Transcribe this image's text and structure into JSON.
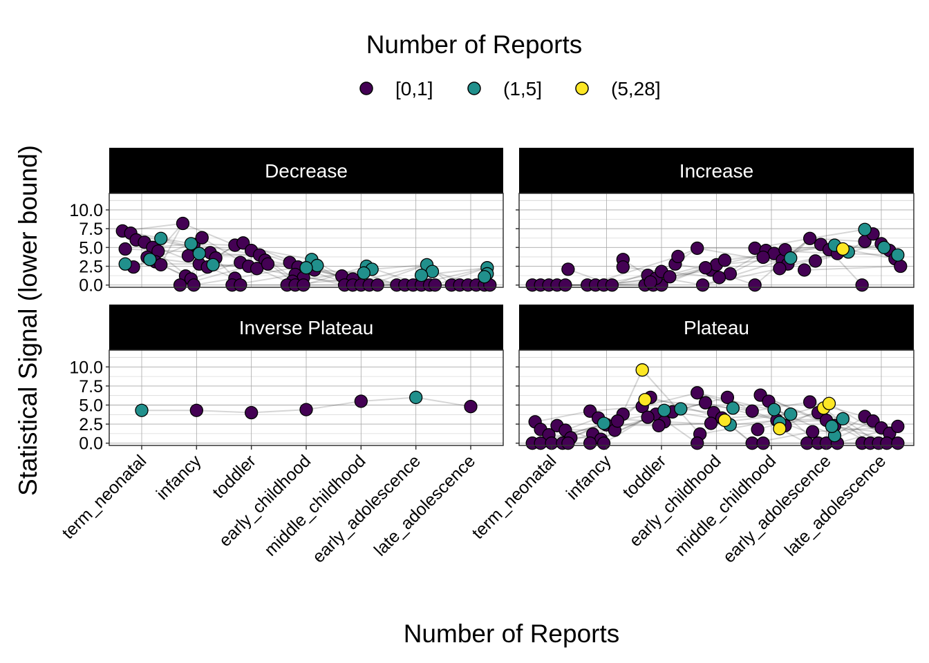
{
  "chart_data": {
    "type": "scatter",
    "xlabel": "Number of Reports",
    "ylabel": "Statistical Signal (lower bound)",
    "ylim": [
      -0.3,
      12.2
    ],
    "y_ticks": [
      "0.0",
      "2.5",
      "5.0",
      "7.5",
      "10.0"
    ],
    "categories": [
      "term_neonatal",
      "infancy",
      "toddler",
      "early_childhood",
      "middle_childhood",
      "early_adolescence",
      "late_adolescence"
    ],
    "grid": true,
    "facet_layout": "2x2",
    "legend": {
      "title": "Number of Reports",
      "position": "top",
      "entries": [
        {
          "label": "[0,1]",
          "color": "#440154"
        },
        {
          "label": "(1,5]",
          "color": "#21908C"
        },
        {
          "label": "(5,28]",
          "color": "#FDE725"
        }
      ]
    },
    "panels": [
      {
        "label": "Decrease",
        "series": [
          {
            "name": "[0,1]",
            "values": [
              [
                -0.35,
                7.2
              ],
              [
                -0.2,
                6.9
              ],
              [
                -0.1,
                6.0
              ],
              [
                0.05,
                5.7
              ],
              [
                0.2,
                5.0
              ],
              [
                0.3,
                4.5
              ],
              [
                -0.3,
                4.8
              ],
              [
                0.1,
                3.7
              ],
              [
                0.25,
                3.1
              ],
              [
                -0.15,
                2.4
              ],
              [
                0.35,
                2.7
              ],
              [
                0.75,
                8.2
              ],
              [
                0.95,
                5.4
              ],
              [
                1.1,
                6.3
              ],
              [
                1.25,
                4.3
              ],
              [
                1.35,
                3.6
              ],
              [
                0.85,
                3.9
              ],
              [
                1.05,
                2.8
              ],
              [
                1.2,
                2.4
              ],
              [
                0.8,
                1.2
              ],
              [
                0.9,
                0.8
              ],
              [
                0.7,
                0.0
              ],
              [
                0.95,
                0.0
              ],
              [
                1.7,
                5.3
              ],
              [
                1.85,
                5.6
              ],
              [
                2.0,
                4.6
              ],
              [
                2.15,
                4.0
              ],
              [
                2.25,
                3.3
              ],
              [
                1.8,
                3.0
              ],
              [
                1.95,
                2.5
              ],
              [
                2.1,
                2.2
              ],
              [
                2.3,
                2.8
              ],
              [
                1.7,
                0.9
              ],
              [
                1.65,
                0.0
              ],
              [
                1.8,
                0.0
              ],
              [
                2.7,
                3.0
              ],
              [
                2.85,
                2.4
              ],
              [
                3.0,
                2.2
              ],
              [
                3.15,
                2.0
              ],
              [
                2.8,
                1.4
              ],
              [
                2.95,
                1.0
              ],
              [
                2.75,
                0.5
              ],
              [
                2.65,
                0.0
              ],
              [
                2.8,
                0.0
              ],
              [
                2.95,
                0.0
              ],
              [
                3.65,
                1.2
              ],
              [
                3.85,
                0.8
              ],
              [
                3.7,
                0.0
              ],
              [
                3.85,
                0.0
              ],
              [
                4.0,
                0.0
              ],
              [
                4.15,
                0.0
              ],
              [
                4.3,
                0.0
              ],
              [
                4.65,
                0.0
              ],
              [
                4.8,
                0.0
              ],
              [
                4.95,
                0.0
              ],
              [
                5.1,
                0.0
              ],
              [
                5.25,
                0.0
              ],
              [
                5.35,
                0.0
              ],
              [
                5.65,
                0.0
              ],
              [
                5.8,
                0.0
              ],
              [
                5.95,
                0.0
              ],
              [
                6.1,
                0.0
              ],
              [
                6.25,
                0.0
              ],
              [
                6.35,
                0.0
              ]
            ]
          },
          {
            "name": "(1,5]",
            "values": [
              [
                0.35,
                6.2
              ],
              [
                -0.3,
                2.8
              ],
              [
                0.15,
                3.4
              ],
              [
                0.9,
                5.5
              ],
              [
                1.05,
                4.2
              ],
              [
                1.3,
                2.7
              ],
              [
                3.1,
                3.4
              ],
              [
                3.2,
                2.6
              ],
              [
                3.0,
                2.3
              ],
              [
                4.1,
                2.5
              ],
              [
                4.2,
                2.1
              ],
              [
                4.05,
                1.6
              ],
              [
                5.2,
                2.7
              ],
              [
                5.3,
                1.8
              ],
              [
                5.1,
                1.3
              ],
              [
                6.3,
                2.3
              ],
              [
                6.3,
                1.5
              ],
              [
                6.25,
                1.1
              ]
            ]
          },
          {
            "name": "(5,28]",
            "values": []
          }
        ]
      },
      {
        "label": "Increase",
        "series": [
          {
            "name": "[0,1]",
            "values": [
              [
                -0.35,
                0.0
              ],
              [
                -0.2,
                0.0
              ],
              [
                -0.05,
                0.0
              ],
              [
                0.1,
                0.0
              ],
              [
                0.25,
                0.0
              ],
              [
                0.3,
                2.1
              ],
              [
                0.65,
                0.0
              ],
              [
                0.8,
                0.0
              ],
              [
                0.95,
                0.0
              ],
              [
                1.1,
                0.0
              ],
              [
                1.3,
                3.4
              ],
              [
                1.3,
                2.4
              ],
              [
                1.7,
                0.0
              ],
              [
                1.85,
                0.0
              ],
              [
                2.0,
                0.0
              ],
              [
                1.75,
                1.3
              ],
              [
                1.9,
                0.9
              ],
              [
                2.0,
                1.8
              ],
              [
                2.15,
                1.1
              ],
              [
                2.25,
                2.8
              ],
              [
                2.3,
                3.8
              ],
              [
                1.8,
                0.4
              ],
              [
                2.65,
                4.9
              ],
              [
                2.75,
                0.0
              ],
              [
                2.9,
                2.0
              ],
              [
                3.0,
                2.7
              ],
              [
                3.15,
                3.3
              ],
              [
                3.25,
                1.5
              ],
              [
                2.8,
                2.3
              ],
              [
                3.05,
                1.0
              ],
              [
                3.7,
                4.9
              ],
              [
                3.9,
                4.6
              ],
              [
                4.05,
                4.2
              ],
              [
                4.2,
                3.3
              ],
              [
                4.3,
                2.8
              ],
              [
                3.85,
                3.7
              ],
              [
                3.7,
                0.0
              ],
              [
                4.15,
                2.2
              ],
              [
                4.25,
                4.7
              ],
              [
                4.7,
                6.2
              ],
              [
                4.9,
                5.4
              ],
              [
                5.05,
                4.7
              ],
              [
                5.2,
                4.2
              ],
              [
                4.8,
                3.2
              ],
              [
                4.6,
                2.0
              ],
              [
                5.7,
                5.8
              ],
              [
                5.85,
                6.8
              ],
              [
                6.0,
                5.5
              ],
              [
                6.15,
                4.6
              ],
              [
                6.25,
                3.5
              ],
              [
                6.35,
                2.5
              ],
              [
                5.65,
                0.0
              ]
            ]
          },
          {
            "name": "(1,5]",
            "values": [
              [
                4.35,
                3.6
              ],
              [
                5.15,
                5.3
              ],
              [
                5.4,
                4.4
              ],
              [
                5.7,
                7.4
              ],
              [
                6.05,
                5.0
              ],
              [
                6.3,
                4.0
              ]
            ]
          },
          {
            "name": "(5,28]",
            "values": [
              [
                5.3,
                4.8
              ]
            ]
          }
        ]
      },
      {
        "label": "Inverse Plateau",
        "series": [
          {
            "name": "[0,1]",
            "values": [
              [
                1.0,
                4.3
              ],
              [
                2.0,
                4.0
              ],
              [
                3.0,
                4.4
              ],
              [
                4.0,
                5.5
              ],
              [
                6.0,
                4.8
              ]
            ]
          },
          {
            "name": "(1,5]",
            "values": [
              [
                0.0,
                4.3
              ],
              [
                5.0,
                6.0
              ]
            ]
          },
          {
            "name": "(5,28]",
            "values": []
          }
        ]
      },
      {
        "label": "Plateau",
        "series": [
          {
            "name": "[0,1]",
            "values": [
              [
                -0.3,
                2.8
              ],
              [
                -0.2,
                1.8
              ],
              [
                -0.05,
                1.1
              ],
              [
                0.1,
                2.3
              ],
              [
                0.25,
                1.7
              ],
              [
                0.35,
                0.7
              ],
              [
                -0.35,
                0.0
              ],
              [
                -0.2,
                0.0
              ],
              [
                0.0,
                0.0
              ],
              [
                0.2,
                0.0
              ],
              [
                0.3,
                0.0
              ],
              [
                0.7,
                4.2
              ],
              [
                0.85,
                3.3
              ],
              [
                1.0,
                2.4
              ],
              [
                1.15,
                1.7
              ],
              [
                1.3,
                3.8
              ],
              [
                0.75,
                1.2
              ],
              [
                0.9,
                0.5
              ],
              [
                1.2,
                2.9
              ],
              [
                0.7,
                0.0
              ],
              [
                0.95,
                0.0
              ],
              [
                1.65,
                4.8
              ],
              [
                1.8,
                6.0
              ],
              [
                1.9,
                3.8
              ],
              [
                2.05,
                2.8
              ],
              [
                2.2,
                4.1
              ],
              [
                1.75,
                3.4
              ],
              [
                1.95,
                2.3
              ],
              [
                2.65,
                6.6
              ],
              [
                2.8,
                5.3
              ],
              [
                2.95,
                4.0
              ],
              [
                3.1,
                3.3
              ],
              [
                3.2,
                6.0
              ],
              [
                2.7,
                1.2
              ],
              [
                2.65,
                0.0
              ],
              [
                2.9,
                2.6
              ],
              [
                3.65,
                4.2
              ],
              [
                3.8,
                6.3
              ],
              [
                3.95,
                5.5
              ],
              [
                4.1,
                3.0
              ],
              [
                4.25,
                2.3
              ],
              [
                3.75,
                1.8
              ],
              [
                3.65,
                0.0
              ],
              [
                3.85,
                0.0
              ],
              [
                4.7,
                5.4
              ],
              [
                4.85,
                4.0
              ],
              [
                5.0,
                3.0
              ],
              [
                5.15,
                2.3
              ],
              [
                4.75,
                1.5
              ],
              [
                4.65,
                0.0
              ],
              [
                4.85,
                0.0
              ],
              [
                5.0,
                0.0
              ],
              [
                5.2,
                0.0
              ],
              [
                5.7,
                3.5
              ],
              [
                5.85,
                2.9
              ],
              [
                6.0,
                2.0
              ],
              [
                6.15,
                1.3
              ],
              [
                6.3,
                2.2
              ],
              [
                5.65,
                0.0
              ],
              [
                5.8,
                0.0
              ],
              [
                5.95,
                0.0
              ],
              [
                6.1,
                0.0
              ],
              [
                6.3,
                0.0
              ]
            ]
          },
          {
            "name": "(1,5]",
            "values": [
              [
                0.95,
                2.6
              ],
              [
                2.05,
                4.3
              ],
              [
                2.35,
                4.5
              ],
              [
                3.3,
                4.6
              ],
              [
                3.25,
                2.4
              ],
              [
                4.05,
                4.4
              ],
              [
                4.35,
                3.8
              ],
              [
                4.15,
                2.7
              ],
              [
                5.3,
                3.2
              ],
              [
                5.15,
                1.0
              ],
              [
                5.1,
                2.2
              ]
            ]
          },
          {
            "name": "(5,28]",
            "values": [
              [
                1.65,
                9.6
              ],
              [
                1.7,
                5.7
              ],
              [
                3.15,
                3.0
              ],
              [
                4.15,
                1.9
              ],
              [
                4.95,
                4.6
              ],
              [
                5.05,
                5.2
              ]
            ]
          }
        ]
      }
    ]
  }
}
